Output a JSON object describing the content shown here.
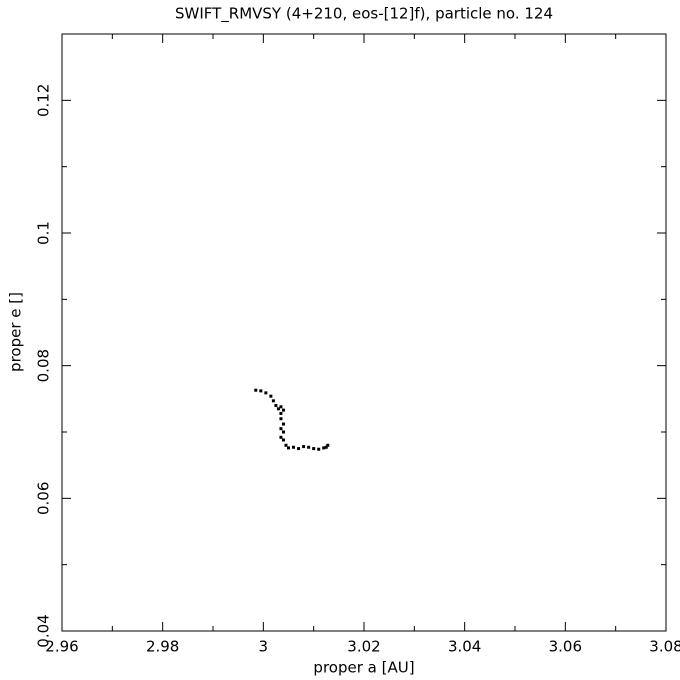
{
  "chart_data": {
    "type": "scatter",
    "title": "SWIFT_RMVSY (4+210, eos-[12]f), particle no. 124",
    "x_label": "proper a [AU]",
    "y_label": "proper e []",
    "xlim": [
      2.96,
      3.08
    ],
    "ylim": [
      0.04,
      0.13
    ],
    "xticks": [
      2.96,
      2.98,
      3,
      3.02,
      3.04,
      3.06,
      3.08
    ],
    "yticks": [
      0.04,
      0.06,
      0.08,
      0.1,
      0.12
    ],
    "xminorticks": [
      2.97,
      2.99,
      3.01,
      3.03,
      3.05,
      3.07
    ],
    "yminorticks": [
      0.05,
      0.07,
      0.09,
      0.11
    ],
    "color": "#000000",
    "x": [
      2.9985,
      2.9995,
      3.0005,
      3.0015,
      3.002,
      3.0025,
      3.003,
      3.0035,
      3.0035,
      3.004,
      3.0035,
      3.004,
      3.0035,
      3.004,
      3.0035,
      3.004,
      3.0045,
      3.005,
      3.006,
      3.007,
      3.008,
      3.009,
      3.01,
      3.011,
      3.012,
      3.0128,
      3.0125
    ],
    "values": [
      0.0763,
      0.0762,
      0.0759,
      0.0754,
      0.0747,
      0.074,
      0.0735,
      0.0738,
      0.0728,
      0.0733,
      0.072,
      0.0712,
      0.0705,
      0.07,
      0.0692,
      0.0688,
      0.068,
      0.0676,
      0.0677,
      0.0675,
      0.0678,
      0.0677,
      0.0675,
      0.0674,
      0.0676,
      0.068,
      0.0677
    ]
  }
}
